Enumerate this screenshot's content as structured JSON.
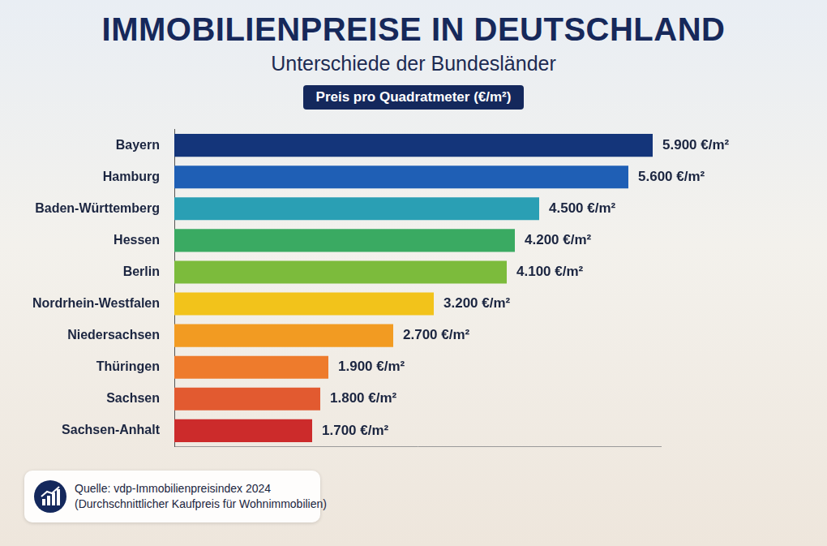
{
  "chart_data": {
    "type": "bar",
    "title": "IMMOBILIENPREISE IN DEUTSCHLAND",
    "subtitle": "Unterschiede der Bundesländer",
    "xlabel": "Preis pro Quadratmeter (€/m²)",
    "annotations": [
      "Quelle: vdp-Immobilienpreisindex 2024",
      "(Durchschnittlicher Kaufpreis für Wohnimmobilien)"
    ],
    "orientation": "horizontal",
    "categories": [
      "Bayern",
      "Hamburg",
      "Baden-Württemberg",
      "Hessen",
      "Berlin",
      "Nordrhein-Westfalen",
      "Niedersachsen",
      "Thüringen",
      "Sachsen",
      "Sachsen-Anhalt"
    ],
    "values": [
      5900,
      5600,
      4500,
      4200,
      4100,
      3200,
      2700,
      1900,
      1800,
      1700
    ],
    "value_labels": [
      "5.900 €/m²",
      "5.600 €/m²",
      "4.500 €/m²",
      "4.200 €/m²",
      "4.100 €/m²",
      "3.200 €/m²",
      "2.700 €/m²",
      "1.900 €/m²",
      "1.800 €/m²",
      "1.700 €/m²"
    ],
    "colors": [
      "#14357a",
      "#1f5fb5",
      "#2a9fb4",
      "#3aaa62",
      "#7cbb3c",
      "#f2c31b",
      "#f29b22",
      "#ee7b2c",
      "#e25a30",
      "#cc2b2b"
    ],
    "xlim": [
      0,
      6000
    ],
    "grid": false,
    "data_labels": true,
    "tick_labels": "y"
  }
}
